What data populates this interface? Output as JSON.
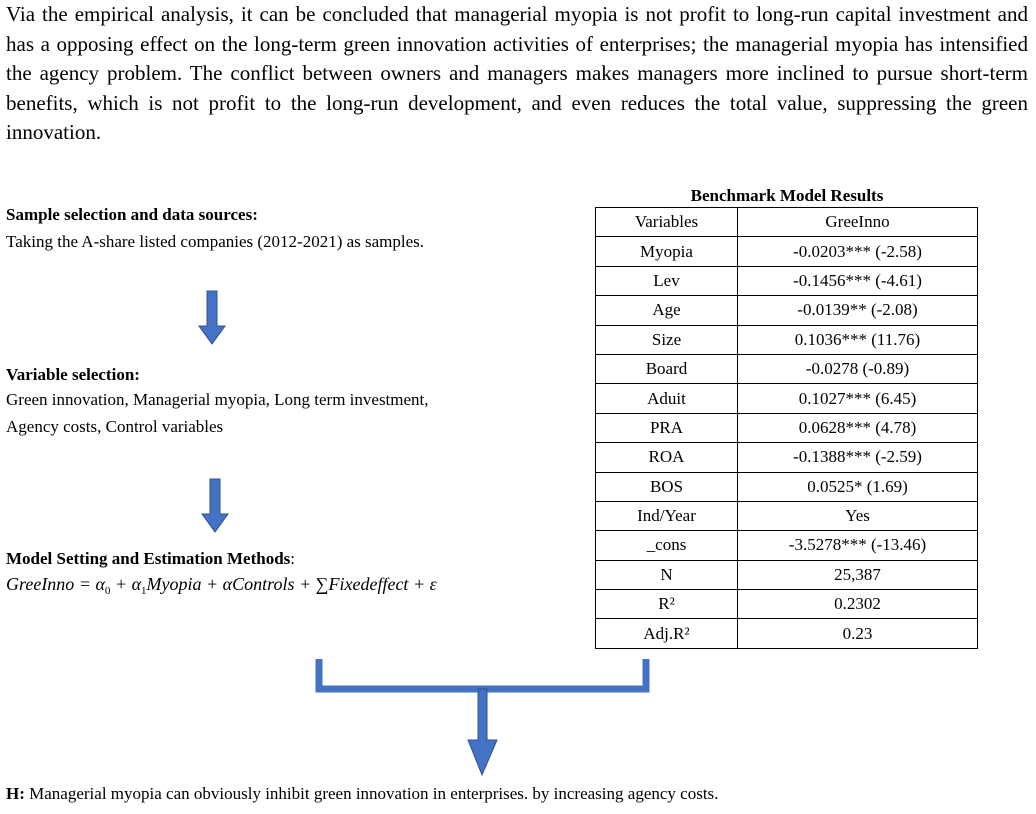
{
  "intro_text": "Via the empirical analysis, it can be concluded that managerial myopia is not profit to long-run capital investment and has a opposing effect on the long-term green innovation activities of enterprises; the managerial myopia has intensified the agency problem. The conflict between owners and managers makes managers more inclined to pursue short-term benefits, which is not profit to the long-run development, and even reduces the total value, suppressing the green innovation.",
  "sample": {
    "title": "Sample selection and data sources:",
    "body": "Taking the A-share listed companies (2012-2021) as samples."
  },
  "variables": {
    "title": "Variable selection:",
    "body": "Green innovation, Managerial   myopia, Long term investment, Agency costs, Control variables"
  },
  "model": {
    "title": "Model Setting and Estimation Methods",
    "title_suffix": ":",
    "formula": {
      "lhs": "GreeInno",
      "eq": " = ",
      "alpha": "α",
      "sub0": "0",
      "sub1": "1",
      "myopia": "Myopia",
      "controls": "αControls",
      "sigma": "∑",
      "fixed": "Fixedeffect",
      "epsilon": "ε",
      "plus": " + "
    }
  },
  "table": {
    "caption": "Benchmark Model Results",
    "header": [
      "Variables",
      "GreeInno"
    ],
    "rows": [
      [
        "Myopia",
        "-0.0203***  (-2.58)"
      ],
      [
        "Lev",
        "-0.1456***  (-4.61)"
      ],
      [
        "Age",
        "-0.0139**  (-2.08)"
      ],
      [
        "Size",
        "0.1036***  (11.76)"
      ],
      [
        "Board",
        "-0.0278  (-0.89)"
      ],
      [
        "Aduit",
        "0.1027***  (6.45)"
      ],
      [
        "PRA",
        "0.0628***  (4.78)"
      ],
      [
        "ROA",
        "-0.1388***  (-2.59)"
      ],
      [
        "BOS",
        "0.0525*  (1.69)"
      ],
      [
        "Ind/Year",
        "Yes"
      ],
      [
        "_cons",
        "-3.5278***  (-13.46)"
      ],
      [
        "N",
        "25,387"
      ],
      [
        "R²",
        "0.2302"
      ],
      [
        "Adj.R²",
        "0.23"
      ]
    ]
  },
  "conclusion": {
    "label": "H:",
    "text": " Managerial myopia can obviously inhibit green innovation in enterprises. by increasing agency costs."
  },
  "colors": {
    "arrow": "#4472c4",
    "arrow_stroke": "#2f528f"
  },
  "icons": [
    "down-arrow-icon",
    "bracket-connector-icon"
  ]
}
